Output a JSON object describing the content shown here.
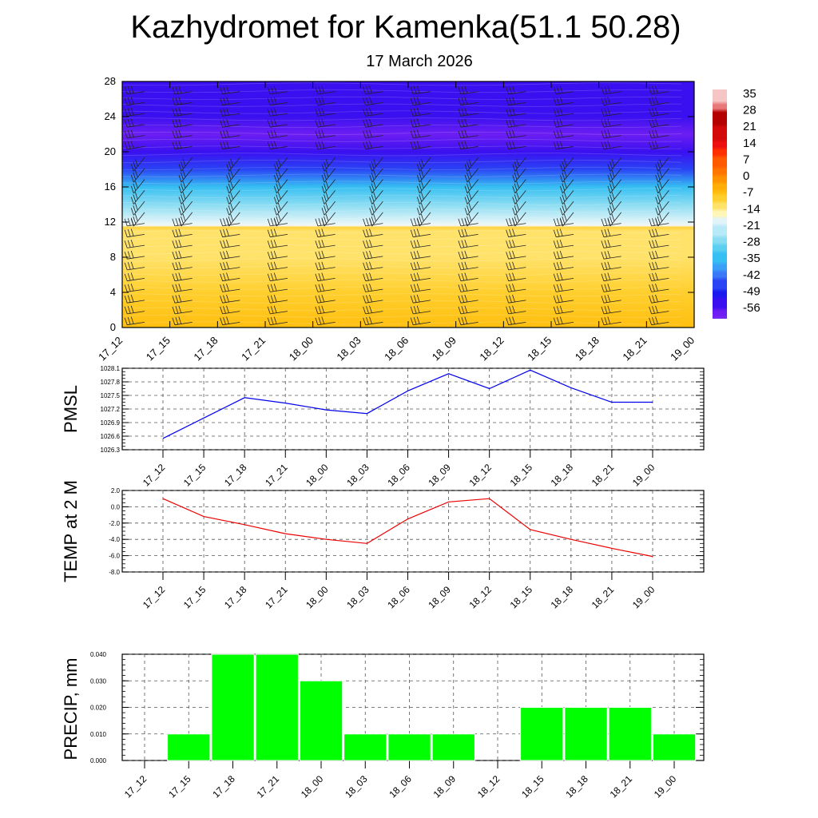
{
  "title": "Kazhydromet for Kamenka(51.1 50.28)",
  "subtitle": "17 March 2026",
  "colors": {
    "pmsl_line": "#0000ee",
    "temp_line": "#ee0000",
    "precip_bar": "#00ff00",
    "grid": "#555555"
  },
  "time_labels": [
    "17_12",
    "17_15",
    "17_18",
    "17_21",
    "18_00",
    "18_03",
    "18_06",
    "18_09",
    "18_12",
    "18_15",
    "18_18",
    "18_21",
    "19_00"
  ],
  "chart_data": [
    {
      "id": "cross_section",
      "type": "heatmap",
      "title": "",
      "xlabel": "",
      "ylabel": "",
      "x": [
        "17_12",
        "17_15",
        "17_18",
        "17_21",
        "18_00",
        "18_03",
        "18_06",
        "18_09",
        "18_12",
        "18_15",
        "18_18",
        "18_21",
        "19_00"
      ],
      "ylim": [
        0,
        28
      ],
      "yticks": [
        "0",
        "4",
        "8",
        "12",
        "16",
        "20",
        "24",
        "28"
      ],
      "colorbar_labels": [
        "35",
        "28",
        "21",
        "14",
        "7",
        "0",
        "-7",
        "-14",
        "-21",
        "-28",
        "-35",
        "-42",
        "-49",
        "-56"
      ],
      "temperature_by_height": [
        {
          "height": 0,
          "value": -7
        },
        {
          "height": 4,
          "value": -11
        },
        {
          "height": 8,
          "value": -12
        },
        {
          "height": 11,
          "value": -14
        },
        {
          "height": 12,
          "value": -20
        },
        {
          "height": 14,
          "value": -28
        },
        {
          "height": 16,
          "value": -35
        },
        {
          "height": 18,
          "value": -49
        },
        {
          "height": 20,
          "value": -56
        },
        {
          "height": 22,
          "value": -60
        },
        {
          "height": 24,
          "value": -56
        },
        {
          "height": 28,
          "value": -56
        }
      ],
      "wind_barbs": true
    },
    {
      "id": "pmsl",
      "type": "line",
      "ylabel": "PMSL",
      "ylim": [
        1026.3,
        1028.1
      ],
      "yticks": [
        "1026.3",
        "1026.6",
        "1026.9",
        "1027.2",
        "1027.5",
        "1027.8",
        "1028.1"
      ],
      "categories": [
        "17_12",
        "17_15",
        "17_18",
        "17_21",
        "18_00",
        "18_03",
        "18_06",
        "18_09",
        "18_12",
        "18_15",
        "18_18",
        "18_21",
        "19_00"
      ],
      "values": [
        1026.55,
        1027.0,
        1027.45,
        1027.33,
        1027.18,
        1027.1,
        1027.6,
        1027.98,
        1027.65,
        1028.06,
        1027.67,
        1027.35,
        1027.35
      ]
    },
    {
      "id": "temp2m",
      "type": "line",
      "ylabel": "TEMP at 2 M",
      "ylim": [
        -8,
        2
      ],
      "yticks": [
        "-8.0",
        "-6.0",
        "-4.0",
        "-2.0",
        "0.0",
        "2.0"
      ],
      "categories": [
        "17_12",
        "17_15",
        "17_18",
        "17_21",
        "18_00",
        "18_03",
        "18_06",
        "18_09",
        "18_12",
        "18_15",
        "18_18",
        "18_21",
        "19_00"
      ],
      "values": [
        1.0,
        -1.2,
        -2.2,
        -3.3,
        -4.0,
        -4.5,
        -1.5,
        0.6,
        1.0,
        -2.8,
        -4.0,
        -5.1,
        -6.1
      ]
    },
    {
      "id": "precip",
      "type": "bar",
      "ylabel": "PRECIP, mm",
      "ylim": [
        0,
        0.04
      ],
      "yticks": [
        "0.000",
        "0.010",
        "0.020",
        "0.030",
        "0.040"
      ],
      "categories": [
        "17_12",
        "17_15",
        "17_18",
        "17_21",
        "18_00",
        "18_03",
        "18_06",
        "18_09",
        "18_12",
        "18_15",
        "18_18",
        "18_21",
        "19_00"
      ],
      "values": [
        0,
        0.01,
        0.04,
        0.04,
        0.03,
        0.01,
        0.01,
        0.01,
        0,
        0.02,
        0.02,
        0.02,
        0.01
      ]
    }
  ]
}
